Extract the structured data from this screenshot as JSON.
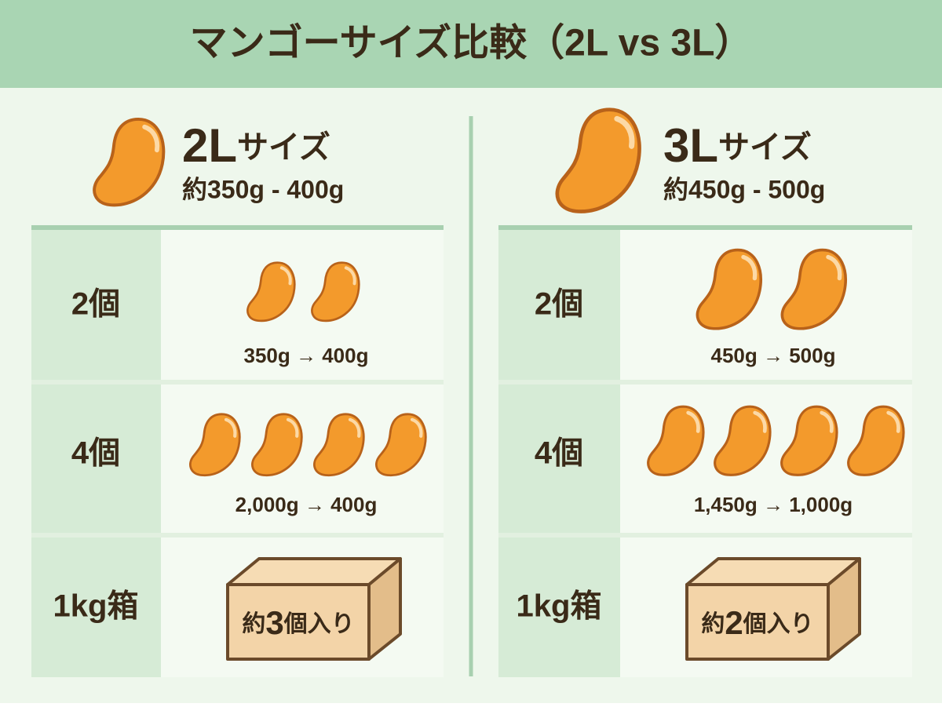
{
  "title": "マンゴーサイズ比較（2L vs 3L）",
  "columns": [
    {
      "size": "2L",
      "size_suffix": "サイズ",
      "weight": "約350g - 400g",
      "rows": [
        {
          "label": "2個",
          "caption": "350g → 400g"
        },
        {
          "label": "4個",
          "caption": "2,000g → 400g"
        },
        {
          "label": "1kg箱",
          "box_text": [
            "約",
            "3",
            "個入り"
          ]
        }
      ]
    },
    {
      "size": "3L",
      "size_suffix": "サイズ",
      "weight": "約450g - 500g",
      "rows": [
        {
          "label": "2個",
          "caption": "450g → 500g"
        },
        {
          "label": "4個",
          "caption": "1,450g → 1,000g"
        },
        {
          "label": "1kg箱",
          "box_text": [
            "約",
            "2",
            "個入り"
          ]
        }
      ]
    }
  ]
}
